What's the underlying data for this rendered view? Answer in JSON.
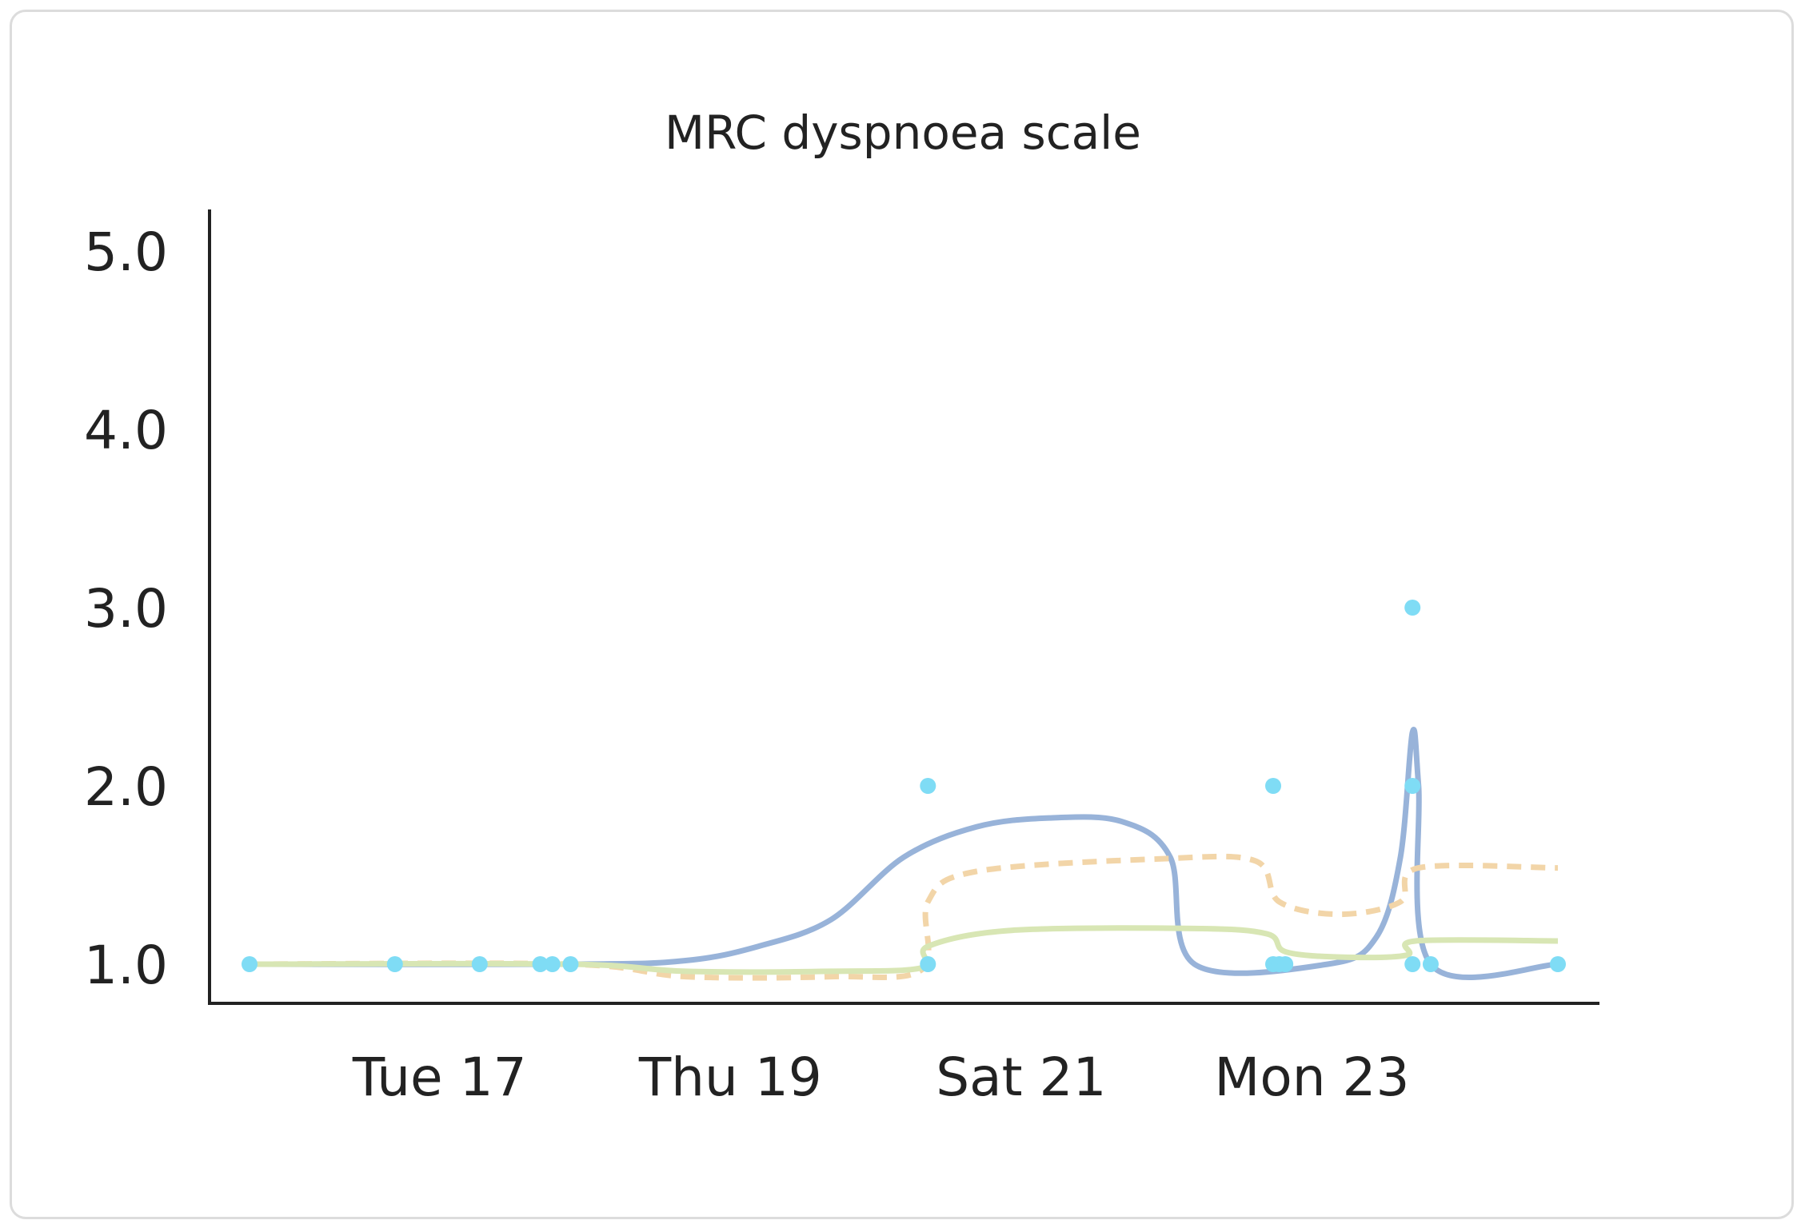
{
  "chart_data": {
    "type": "line",
    "title": "MRC dyspnoea scale",
    "xlabel": "",
    "ylabel": "",
    "x_ticks": [
      "Tue 17",
      "Thu 19",
      "Sat 21",
      "Mon 23"
    ],
    "x_range": [
      "2019-12-16T00:00",
      "2019-12-25T00:00"
    ],
    "y_ticks": [
      "1.0",
      "2.0",
      "3.0",
      "4.0",
      "5.0"
    ],
    "ylim": [
      1,
      5
    ],
    "grid": false,
    "legend": "none",
    "points": [
      {
        "x": "2019-12-16T00:00",
        "y": 1
      },
      {
        "x": "2019-12-17T00:00",
        "y": 1
      },
      {
        "x": "2019-12-17T14:00",
        "y": 1
      },
      {
        "x": "2019-12-18T00:00",
        "y": 1
      },
      {
        "x": "2019-12-18T02:00",
        "y": 1
      },
      {
        "x": "2019-12-18T05:00",
        "y": 1
      },
      {
        "x": "2019-12-20T16:00",
        "y": 2
      },
      {
        "x": "2019-12-20T16:00",
        "y": 1
      },
      {
        "x": "2019-12-23T01:00",
        "y": 2
      },
      {
        "x": "2019-12-23T01:00",
        "y": 1
      },
      {
        "x": "2019-12-23T02:00",
        "y": 1
      },
      {
        "x": "2019-12-23T03:00",
        "y": 1
      },
      {
        "x": "2019-12-24T00:00",
        "y": 3
      },
      {
        "x": "2019-12-24T00:00",
        "y": 2
      },
      {
        "x": "2019-12-24T00:00",
        "y": 1
      },
      {
        "x": "2019-12-24T03:00",
        "y": 1
      },
      {
        "x": "2019-12-25T00:00",
        "y": 1
      }
    ],
    "series": [
      {
        "style": "solid",
        "color": "#98b3d9",
        "values": [
          {
            "x": "2019-12-16T00:00",
            "y": 1.0
          },
          {
            "x": "2019-12-18T06:00",
            "y": 1.0
          },
          {
            "x": "2019-12-19T00:00",
            "y": 1.02
          },
          {
            "x": "2019-12-19T12:00",
            "y": 1.1
          },
          {
            "x": "2019-12-20T00:00",
            "y": 1.25
          },
          {
            "x": "2019-12-20T12:00",
            "y": 1.6
          },
          {
            "x": "2019-12-21T00:00",
            "y": 1.77
          },
          {
            "x": "2019-12-21T12:00",
            "y": 1.82
          },
          {
            "x": "2019-12-22T00:00",
            "y": 1.8
          },
          {
            "x": "2019-12-22T08:00",
            "y": 1.6
          },
          {
            "x": "2019-12-22T12:00",
            "y": 1.0
          },
          {
            "x": "2019-12-23T10:00",
            "y": 1.0
          },
          {
            "x": "2019-12-23T18:00",
            "y": 1.15
          },
          {
            "x": "2019-12-23T22:00",
            "y": 1.6
          },
          {
            "x": "2019-12-23T23:59",
            "y": 2.3
          },
          {
            "x": "2019-12-24T01:00",
            "y": 2.0
          },
          {
            "x": "2019-12-24T03:00",
            "y": 1.0
          },
          {
            "x": "2019-12-25T00:00",
            "y": 1.0
          }
        ]
      },
      {
        "style": "dashed",
        "color": "#f2d5a8",
        "values": [
          {
            "x": "2019-12-16T00:00",
            "y": 1.0
          },
          {
            "x": "2019-12-18T05:00",
            "y": 1.0
          },
          {
            "x": "2019-12-19T00:00",
            "y": 0.93
          },
          {
            "x": "2019-12-20T00:00",
            "y": 0.93
          },
          {
            "x": "2019-12-20T15:00",
            "y": 0.97
          },
          {
            "x": "2019-12-20T16:00",
            "y": 1.35
          },
          {
            "x": "2019-12-21T00:00",
            "y": 1.52
          },
          {
            "x": "2019-12-22T06:00",
            "y": 1.59
          },
          {
            "x": "2019-12-22T22:00",
            "y": 1.58
          },
          {
            "x": "2019-12-23T02:00",
            "y": 1.35
          },
          {
            "x": "2019-12-23T12:00",
            "y": 1.28
          },
          {
            "x": "2019-12-23T22:00",
            "y": 1.35
          },
          {
            "x": "2019-12-24T01:00",
            "y": 1.54
          },
          {
            "x": "2019-12-25T00:00",
            "y": 1.54
          }
        ]
      },
      {
        "style": "solid",
        "color": "#d8e6b4",
        "values": [
          {
            "x": "2019-12-16T00:00",
            "y": 1.0
          },
          {
            "x": "2019-12-18T05:00",
            "y": 1.0
          },
          {
            "x": "2019-12-19T00:00",
            "y": 0.96
          },
          {
            "x": "2019-12-20T00:00",
            "y": 0.96
          },
          {
            "x": "2019-12-20T15:00",
            "y": 0.98
          },
          {
            "x": "2019-12-20T16:00",
            "y": 1.1
          },
          {
            "x": "2019-12-21T06:00",
            "y": 1.19
          },
          {
            "x": "2019-12-22T12:00",
            "y": 1.2
          },
          {
            "x": "2019-12-23T00:00",
            "y": 1.17
          },
          {
            "x": "2019-12-23T03:00",
            "y": 1.07
          },
          {
            "x": "2019-12-23T12:00",
            "y": 1.04
          },
          {
            "x": "2019-12-23T23:00",
            "y": 1.05
          },
          {
            "x": "2019-12-24T00:30",
            "y": 1.13
          },
          {
            "x": "2019-12-25T00:00",
            "y": 1.13
          }
        ]
      }
    ],
    "point_color": "#7fdcf5",
    "axis_color": "#222222"
  }
}
